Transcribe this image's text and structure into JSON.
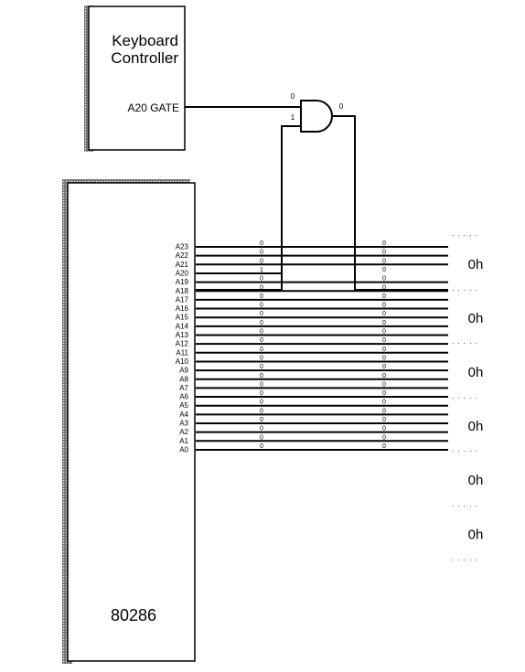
{
  "keyboard_controller": {
    "title_line1": "Keyboard",
    "title_line2": "Controller",
    "gate_label": "A20 GATE"
  },
  "and_gate": {
    "input_a_value": "0",
    "input_b_value": "1",
    "output_value": "0"
  },
  "cpu": {
    "label": "80286"
  },
  "address_lines": [
    {
      "name": "A23",
      "cpu_value": "0",
      "bus_value": "0"
    },
    {
      "name": "A22",
      "cpu_value": "0",
      "bus_value": "0"
    },
    {
      "name": "A21",
      "cpu_value": "0",
      "bus_value": "0"
    },
    {
      "name": "A20",
      "cpu_value": "1",
      "bus_value": "0"
    },
    {
      "name": "A19",
      "cpu_value": "0",
      "bus_value": "0"
    },
    {
      "name": "A18",
      "cpu_value": "0",
      "bus_value": "0"
    },
    {
      "name": "A17",
      "cpu_value": "0",
      "bus_value": "0"
    },
    {
      "name": "A16",
      "cpu_value": "0",
      "bus_value": "0"
    },
    {
      "name": "A15",
      "cpu_value": "0",
      "bus_value": "0"
    },
    {
      "name": "A14",
      "cpu_value": "0",
      "bus_value": "0"
    },
    {
      "name": "A13",
      "cpu_value": "0",
      "bus_value": "0"
    },
    {
      "name": "A12",
      "cpu_value": "0",
      "bus_value": "0"
    },
    {
      "name": "A11",
      "cpu_value": "0",
      "bus_value": "0"
    },
    {
      "name": "A10",
      "cpu_value": "0",
      "bus_value": "0"
    },
    {
      "name": "A9",
      "cpu_value": "0",
      "bus_value": "0"
    },
    {
      "name": "A8",
      "cpu_value": "0",
      "bus_value": "0"
    },
    {
      "name": "A7",
      "cpu_value": "0",
      "bus_value": "0"
    },
    {
      "name": "A6",
      "cpu_value": "0",
      "bus_value": "0"
    },
    {
      "name": "A5",
      "cpu_value": "0",
      "bus_value": "0"
    },
    {
      "name": "A4",
      "cpu_value": "0",
      "bus_value": "0"
    },
    {
      "name": "A3",
      "cpu_value": "0",
      "bus_value": "0"
    },
    {
      "name": "A2",
      "cpu_value": "0",
      "bus_value": "0"
    },
    {
      "name": "A1",
      "cpu_value": "0",
      "bus_value": "0"
    },
    {
      "name": "A0",
      "cpu_value": "0",
      "bus_value": "0"
    }
  ],
  "hex_groups": [
    "0h",
    "0h",
    "0h",
    "0h",
    "0h",
    "0h"
  ],
  "separator_text": ". . . . ."
}
